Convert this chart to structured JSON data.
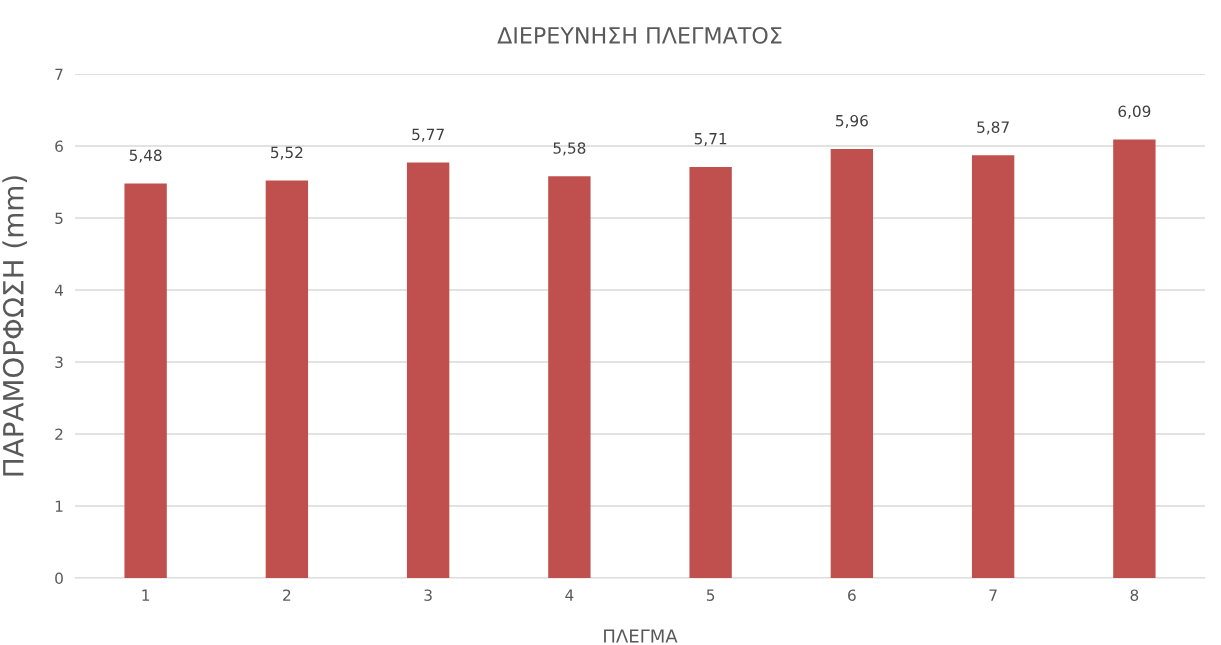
{
  "chart_data": {
    "type": "bar",
    "title": "ΔΙΕΡΕΥΝΗΣΗ ΠΛΕΓΜΑΤΟΣ",
    "xlabel": "ΠΛΕΓΜΑ",
    "ylabel": "ΠΑΡΑΜΟΡΦΩΣΗ (mm)",
    "categories": [
      "1",
      "2",
      "3",
      "4",
      "5",
      "6",
      "7",
      "8"
    ],
    "values": [
      5.48,
      5.52,
      5.77,
      5.58,
      5.71,
      5.96,
      5.87,
      6.09
    ],
    "value_labels": [
      "5,48",
      "5,52",
      "5,77",
      "5,58",
      "5,71",
      "5,96",
      "5,87",
      "6,09"
    ],
    "color": "#c0504d",
    "ylim": [
      0,
      7
    ],
    "yticks": [
      0,
      1,
      2,
      3,
      4,
      5,
      6,
      7
    ],
    "grid": "y",
    "legend": false
  }
}
